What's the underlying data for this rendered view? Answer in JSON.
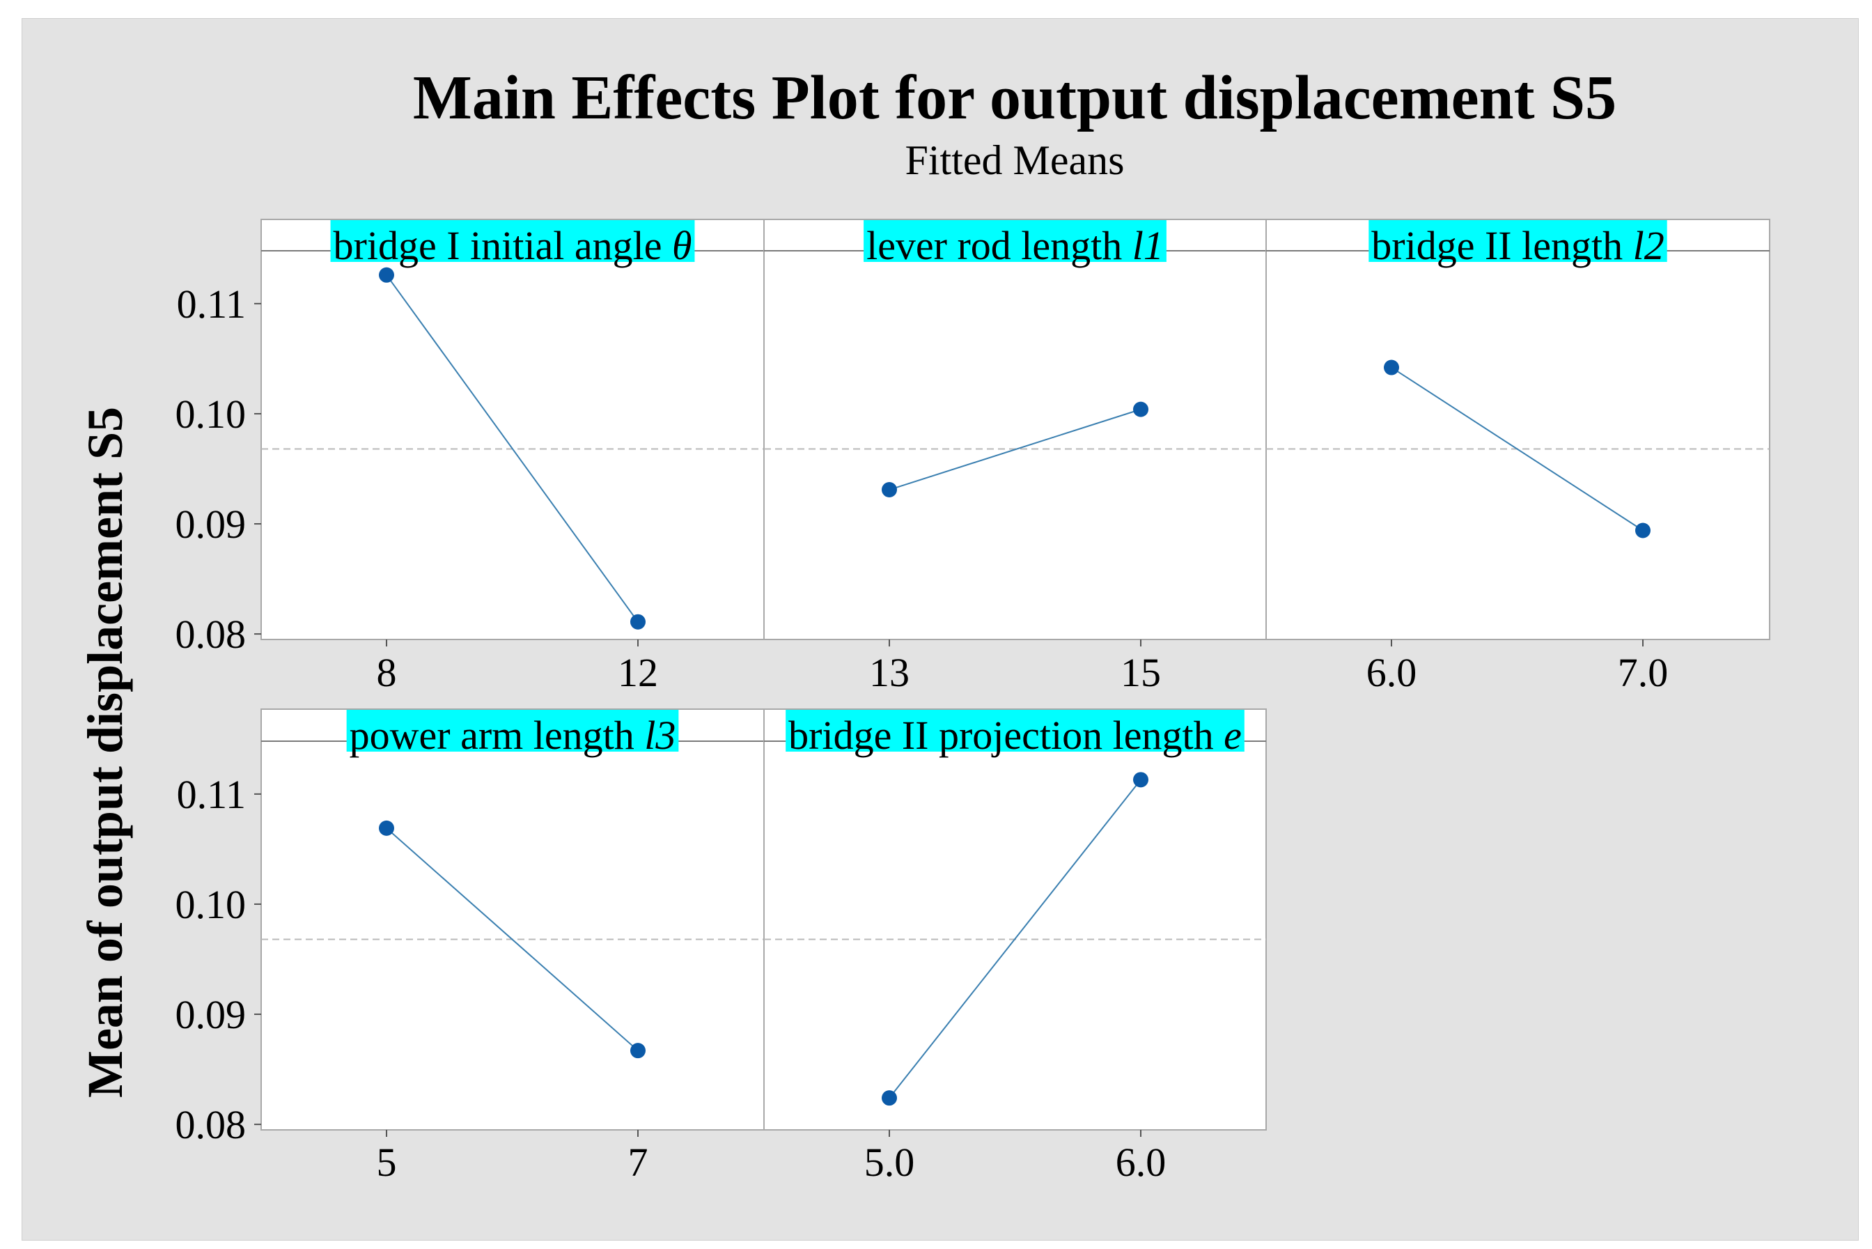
{
  "colors": {
    "background": "#e3e3e3",
    "panel": "#ffffff",
    "strip": "#00ffff",
    "marker": "#0b5aa8",
    "line": "#3a7fb0",
    "reference_line": "#b8b8b8"
  },
  "chart_data": {
    "type": "line",
    "title": "Main Effects Plot for output displacement S5",
    "subtitle": "Fitted Means",
    "ylabel": "Mean of output displacement S5",
    "ylim": [
      0.0795,
      0.1148
    ],
    "yticks": [
      "0.08",
      "0.09",
      "0.10",
      "0.11"
    ],
    "ytick_values": [
      0.08,
      0.09,
      0.1,
      0.11
    ],
    "overall_mean": 0.0968,
    "panels": [
      {
        "factor": "bridge I initial angle",
        "symbol": "θ",
        "levels": [
          "8",
          "12"
        ],
        "means": [
          0.1126,
          0.0811
        ]
      },
      {
        "factor": "lever rod length",
        "symbol": "l1",
        "levels": [
          "13",
          "15"
        ],
        "means": [
          0.0931,
          0.1004
        ]
      },
      {
        "factor": "bridge II length",
        "symbol": "l2",
        "levels": [
          "6.0",
          "7.0"
        ],
        "means": [
          0.1042,
          0.0894
        ]
      },
      {
        "factor": "power arm length",
        "symbol": "l3",
        "levels": [
          "5",
          "7"
        ],
        "means": [
          0.1069,
          0.0867
        ]
      },
      {
        "factor": "bridge II projection length",
        "symbol": "e",
        "levels": [
          "5.0",
          "6.0"
        ],
        "means": [
          0.0824,
          0.1113
        ]
      }
    ]
  }
}
